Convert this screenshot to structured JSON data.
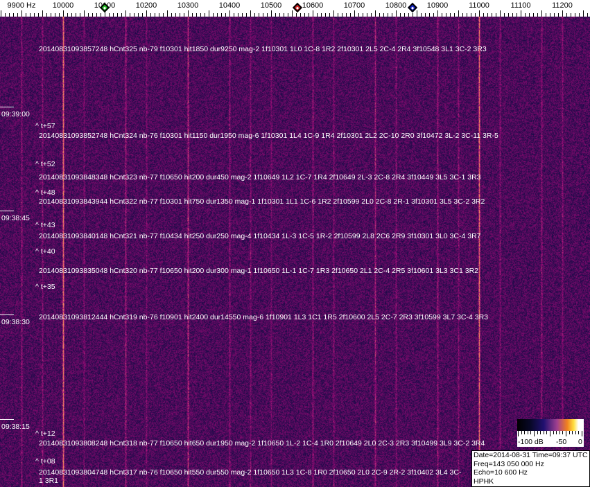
{
  "ruler": {
    "unit_label": "9900 Hz",
    "ticks": [
      "10000",
      "10100",
      "10200",
      "10300",
      "10400",
      "10500",
      "10600",
      "10700",
      "10800",
      "10900",
      "11000",
      "11100",
      "11200"
    ],
    "markers": [
      {
        "name": "green-marker",
        "color": "#22c022",
        "freq_hz": 10100
      },
      {
        "name": "red-marker",
        "color": "#d02020",
        "freq_hz": 10563
      },
      {
        "name": "blue-marker",
        "color": "#1020c0",
        "freq_hz": 10840
      }
    ]
  },
  "colors": {
    "background": "#1c1464",
    "strong_line": "#f08a40"
  },
  "times": [
    "09:39:00",
    "09:38:45",
    "09:38:30",
    "09:38:15"
  ],
  "offsets": [
    "^ t+57",
    "^ t+52",
    "^ t+48",
    "^ t+43",
    "^ t+40",
    "^ t+35",
    "^ t+12",
    "^ t+08"
  ],
  "detections": [
    "20140831093857248 hCnt325 nb-79 f10301 hit1850 dur9250 mag-2 1f10301 1L0 1C-8 1R2 2f10301 2L5 2C-4 2R4 3f10548 3L1 3C-2 3R3",
    "20140831093852748 hCnt324 nb-76 f10301 hit1150 dur1950 mag-6 1f10301 1L4 1C-9 1R4 2f10301 2L2 2C-10 2R0 3f10472 3L-2 3C-11 3R-5",
    "20140831093848348 hCnt323 nb-77 f10650 hit200 dur450 mag-2 1f10649 1L2 1C-7 1R4 2f10649 2L-3 2C-8 2R4 3f10449 3L5 3C-1 3R3",
    "20140831093843944 hCnt322 nb-77 f10301 hit750 dur1350 mag-1 1f10301 1L1 1C-6 1R2 2f10599 2L0 2C-8 2R-1 3f10301 3L5 3C-2 3R2",
    "20140831093840148 hCnt321 nb-77 f10434 hit250 dur250 mag-4 1f10434 1L-3 1C-5 1R-2 2f10599 2L8 2C6 2R9 3f10301 3L0 3C-4 3R7",
    "20140831093835048 hCnt320 nb-77 f10650 hit200 dur300 mag-1 1f10650 1L-1 1C-7 1R3 2f10650 2L1 2C-4 2R5 3f10601 3L3 3C1 3R2",
    "20140831093812444 hCnt319 nb-76 f10901 hit2400 dur14550 mag-6 1f10901 1L3 1C1 1R5 2f10600 2L5 2C-7 2R3 3f10599 3L7 3C-4 3R3",
    "20140831093808248 hCnt318 nb-77 f10650 hit650 dur1950 mag-2 1f10650 1L-2 1C-4 1R0 2f10649 2L0 2C-3 2R3 3f10499 3L9 3C-2 3R4",
    "20140831093804748 hCnt317 nb-76 f10650 hit550 dur550 mag-2 1f10650 1L3 1C-8 1R0 2f10650 2L0 2C-9 2R-2 3f10402 3L4 3C-1 3R1"
  ],
  "colorbar": {
    "labels": [
      "-100 dB",
      "-50",
      "0"
    ]
  },
  "info": {
    "date_time": "Date=2014-08-31 Time=09:37 UTC",
    "freq": "Freq=143 050 000 Hz",
    "echo": "Echo=10 600 Hz",
    "station": "HPHK"
  }
}
